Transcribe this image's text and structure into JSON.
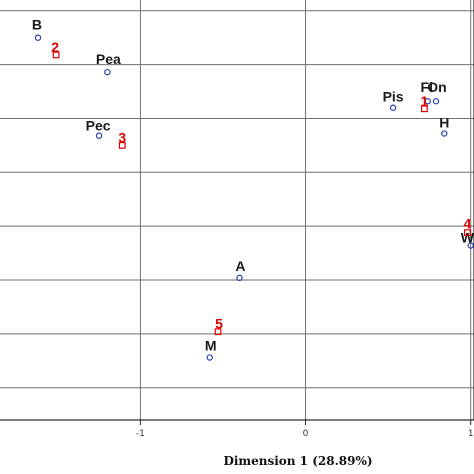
{
  "chart_data": {
    "type": "scatter",
    "xlabel": "Dimension 1 (28.89%)",
    "ylabel": "",
    "xlim": [
      -1.85,
      1.02
    ],
    "ylim": [
      -1.15,
      0.8
    ],
    "x_ticks": [
      -1,
      0,
      1
    ],
    "y_grid": [
      -1.0,
      -0.75,
      -0.5,
      -0.25,
      0.0,
      0.25,
      0.5,
      0.75
    ],
    "grid": true,
    "colors": {
      "variables": "#1a1a1a",
      "variable_marker": "#2b3fb0",
      "categories": "#e00000"
    },
    "series": [
      {
        "points": [
          {
            "label": "B",
            "x": -1.62,
            "y": 0.625
          },
          {
            "label": "Pea",
            "x": -1.2,
            "y": 0.465
          },
          {
            "label": "Pec",
            "x": -1.25,
            "y": 0.17
          },
          {
            "label": "Pis",
            "x": 0.53,
            "y": 0.3
          },
          {
            "label": "Fl",
            "x": 0.74,
            "y": 0.33
          },
          {
            "label": "On",
            "x": 0.79,
            "y": 0.33
          },
          {
            "label": "H",
            "x": 0.84,
            "y": 0.18
          },
          {
            "label": "W",
            "x": 1.0,
            "y": -0.34
          },
          {
            "label": "A",
            "x": -0.4,
            "y": -0.49
          },
          {
            "label": "M",
            "x": -0.58,
            "y": -0.86
          }
        ]
      },
      {
        "points": [
          {
            "label": "1",
            "x": 0.72,
            "y": 0.295
          },
          {
            "label": "2",
            "x": -1.51,
            "y": 0.545
          },
          {
            "label": "3",
            "x": -1.11,
            "y": 0.125
          },
          {
            "label": "4",
            "x": 0.98,
            "y": -0.28
          },
          {
            "label": "5",
            "x": -0.53,
            "y": -0.74
          }
        ]
      }
    ]
  }
}
